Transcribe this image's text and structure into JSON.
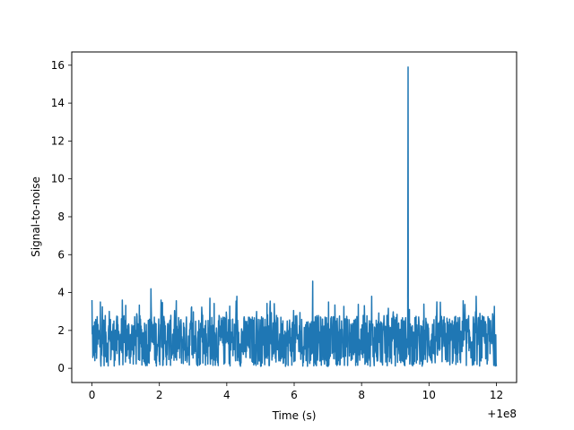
{
  "chart_data": {
    "type": "line",
    "title": "",
    "xlabel": "Time (s)",
    "ylabel": "Signal-to-noise",
    "x_offset_label": "+1e8",
    "xlim": [
      -0.6,
      12.6
    ],
    "ylim": [
      -0.75,
      16.7
    ],
    "x_ticks": [
      0,
      2,
      4,
      6,
      8,
      10,
      12
    ],
    "x_tick_labels": [
      "0",
      "2",
      "4",
      "6",
      "8",
      "10",
      "12"
    ],
    "y_ticks": [
      0,
      2,
      4,
      6,
      8,
      10,
      12,
      14,
      16
    ],
    "y_tick_labels": [
      "0",
      "2",
      "4",
      "6",
      "8",
      "10",
      "12",
      "14",
      "16"
    ],
    "grid": false,
    "series": [
      {
        "color": "#1f77b4",
        "x_range": [
          0,
          12
        ],
        "noise_band": [
          0.1,
          2.8
        ],
        "spikes": [
          {
            "x": 0.0,
            "y": 3.6
          },
          {
            "x": 0.25,
            "y": 3.5
          },
          {
            "x": 0.9,
            "y": 3.6
          },
          {
            "x": 1.75,
            "y": 4.2
          },
          {
            "x": 2.05,
            "y": 3.6
          },
          {
            "x": 3.5,
            "y": 3.7
          },
          {
            "x": 4.3,
            "y": 3.8
          },
          {
            "x": 6.55,
            "y": 4.6
          },
          {
            "x": 8.3,
            "y": 3.8
          },
          {
            "x": 9.38,
            "y": 15.9
          },
          {
            "x": 11.4,
            "y": 3.8
          }
        ]
      }
    ]
  }
}
